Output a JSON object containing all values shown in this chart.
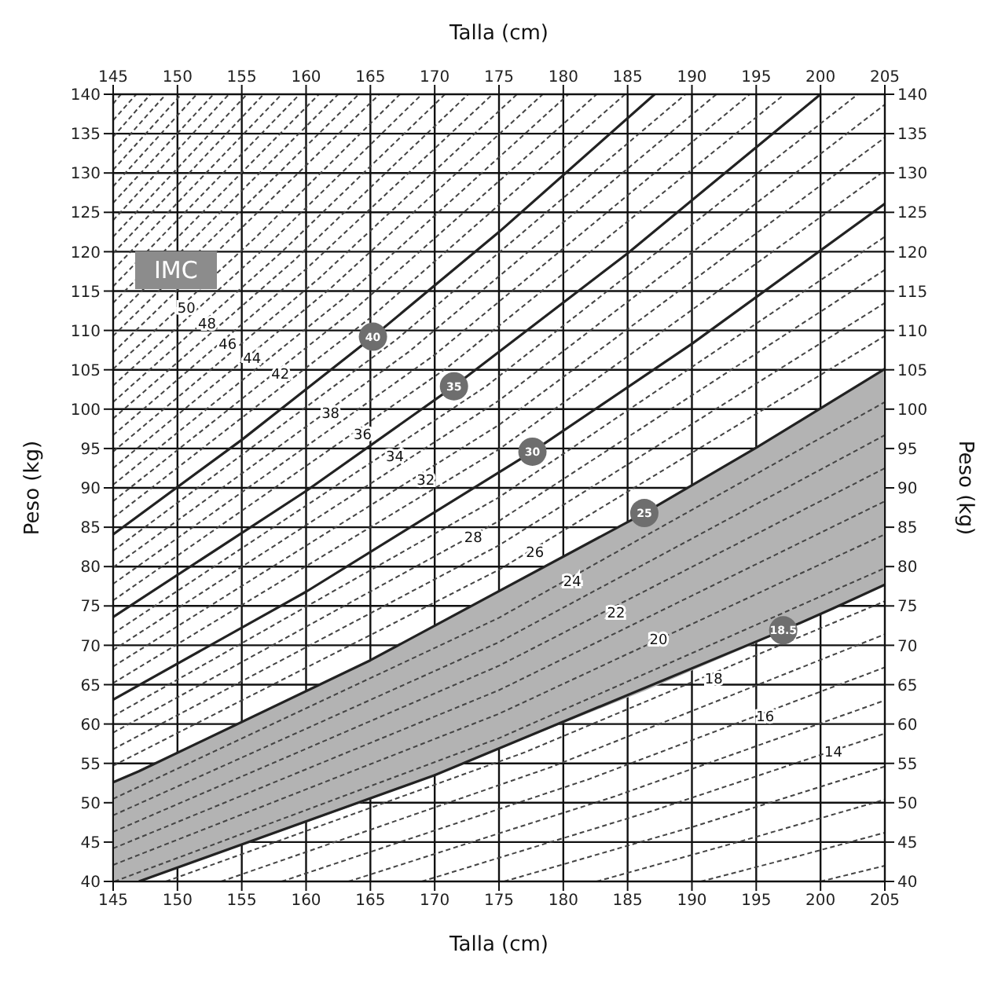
{
  "chart_data": {
    "type": "line",
    "xlabel": "Talla (cm)",
    "x2label": "Talla (cm)",
    "ylabel": "Peso (kg)",
    "y2label": "Peso (kg)",
    "xlim": [
      145,
      205
    ],
    "xticks": [
      145,
      150,
      155,
      160,
      165,
      170,
      175,
      180,
      185,
      190,
      195,
      200,
      205
    ],
    "x2lim": [
      145,
      205
    ],
    "x2ticks": [
      145,
      150,
      155,
      160,
      165,
      170,
      175,
      180,
      185,
      190,
      195,
      200,
      205
    ],
    "ylim": [
      40,
      140
    ],
    "yticks": [
      40,
      45,
      50,
      55,
      60,
      65,
      70,
      75,
      80,
      85,
      90,
      95,
      100,
      105,
      110,
      115,
      120,
      125,
      130,
      135,
      140
    ],
    "y2lim": [
      40,
      140
    ],
    "y2ticks": [
      40,
      45,
      50,
      55,
      60,
      65,
      70,
      75,
      80,
      85,
      90,
      95,
      100,
      105,
      110,
      115,
      120,
      125,
      130,
      135,
      140
    ],
    "grid": true,
    "marker": "none",
    "line_style": "dashed",
    "series": [
      {
        "color": "#444444",
        "x": [
          200,
          205
        ],
        "values": [
          40,
          42.0
        ]
      },
      {
        "color": "#444444",
        "x": [
          190.7,
          198,
          205
        ],
        "values": [
          40,
          43.1,
          46.2
        ]
      },
      {
        "color": "#444444",
        "x": [
          182.6,
          194,
          205
        ],
        "values": [
          40,
          45.2,
          50.4
        ]
      },
      {
        "color": "#444444",
        "x": [
          175.4,
          190,
          205
        ],
        "values": [
          40,
          46.9,
          54.6
        ]
      },
      {
        "color": "#444444",
        "x": [
          169.0,
          187,
          205
        ],
        "values": [
          40,
          49.0,
          58.8
        ]
      },
      {
        "color": "#444444",
        "x": [
          163.3,
          184,
          205
        ],
        "values": [
          40,
          50.8,
          63.0
        ]
      },
      {
        "color": "#444444",
        "x": [
          158.1,
          182,
          205
        ],
        "values": [
          40,
          53.0,
          67.2
        ]
      },
      {
        "color": "#444444",
        "x": [
          153.4,
          179,
          205
        ],
        "values": [
          40,
          54.5,
          71.4
        ]
      },
      {
        "color": "#444444",
        "x": [
          149.1,
          177,
          205
        ],
        "values": [
          40,
          56.4,
          75.6
        ]
      },
      {
        "name": "18.5",
        "color": "#222222",
        "line_style": "solid",
        "x": [
          147.0,
          170,
          197.1,
          201,
          205
        ],
        "values": [
          40.0,
          53.5,
          71.9,
          74.7,
          77.7
        ]
      },
      {
        "color": "#444444",
        "x": [
          145.1,
          175,
          205
        ],
        "values": [
          40,
          58.2,
          79.8
        ]
      },
      {
        "color": "#444444",
        "x": [
          145,
          175,
          205
        ],
        "values": [
          42.1,
          61.3,
          84.1
        ]
      },
      {
        "color": "#444444",
        "x": [
          145,
          175,
          205
        ],
        "values": [
          44.2,
          64.3,
          88.3
        ]
      },
      {
        "color": "#444444",
        "x": [
          145,
          175,
          205
        ],
        "values": [
          46.3,
          67.4,
          92.5
        ]
      },
      {
        "color": "#444444",
        "x": [
          145,
          175,
          205
        ],
        "values": [
          48.4,
          70.4,
          96.7
        ]
      },
      {
        "color": "#444444",
        "x": [
          145,
          175,
          205
        ],
        "values": [
          50.5,
          73.5,
          100.9
        ]
      },
      {
        "name": "25",
        "color": "#222222",
        "line_style": "solid",
        "x": [
          145,
          147.0,
          165,
          186.3,
          195,
          205
        ],
        "values": [
          52.6,
          54.0,
          68.1,
          86.8,
          95.1,
          105.1
        ],
        "lower": [
          40,
          40.0,
          50.4,
          64.2,
          70.3,
          77.7
        ],
        "upper": [
          52.6,
          54.0,
          68.1,
          86.8,
          95.1,
          105.1
        ]
      },
      {
        "color": "#444444",
        "x": [
          145,
          175,
          205
        ],
        "values": [
          54.7,
          79.6,
          109.3
        ]
      },
      {
        "color": "#444444",
        "x": [
          145,
          175,
          205
        ],
        "values": [
          56.8,
          82.7,
          113.5
        ]
      },
      {
        "color": "#444444",
        "x": [
          145,
          175,
          205
        ],
        "values": [
          58.9,
          85.8,
          117.7
        ]
      },
      {
        "color": "#444444",
        "x": [
          145,
          175,
          205
        ],
        "values": [
          61.0,
          88.8,
          121.9
        ]
      },
      {
        "name": "30",
        "color": "#222222",
        "line_style": "solid",
        "x": [
          145,
          160,
          177.6,
          190,
          205
        ],
        "values": [
          63.1,
          76.8,
          94.6,
          108.3,
          126.1
        ]
      },
      {
        "color": "#444444",
        "x": [
          145,
          175,
          205
        ],
        "values": [
          65.2,
          94.9,
          130.3
        ]
      },
      {
        "color": "#444444",
        "x": [
          145,
          175,
          205
        ],
        "values": [
          67.3,
          98.0,
          134.5
        ]
      },
      {
        "color": "#444444",
        "x": [
          145,
          175,
          205
        ],
        "values": [
          69.4,
          101.1,
          138.7
        ]
      },
      {
        "color": "#444444",
        "x": [
          145,
          174,
          202.9
        ],
        "values": [
          71.5,
          102.9,
          140
        ]
      },
      {
        "name": "35",
        "color": "#222222",
        "line_style": "solid",
        "x": [
          145,
          160,
          171.5,
          185,
          200
        ],
        "values": [
          73.6,
          89.6,
          102.9,
          119.8,
          140
        ]
      },
      {
        "color": "#444444",
        "x": [
          145,
          171,
          197.2
        ],
        "values": [
          75.7,
          105.3,
          140
        ]
      },
      {
        "color": "#444444",
        "x": [
          145,
          170,
          194.5
        ],
        "values": [
          77.8,
          106.9,
          140
        ]
      },
      {
        "color": "#444444",
        "x": [
          145,
          168,
          191.9
        ],
        "values": [
          79.9,
          107.3,
          140
        ]
      },
      {
        "color": "#444444",
        "x": [
          145,
          167,
          189.5
        ],
        "values": [
          82.0,
          108.8,
          140
        ]
      },
      {
        "name": "40",
        "color": "#222222",
        "line_style": "solid",
        "x": [
          145,
          155,
          165.2,
          175,
          187.1
        ],
        "values": [
          84.1,
          96.1,
          109.2,
          122.5,
          140
        ]
      },
      {
        "color": "#444444",
        "x": [
          145,
          165,
          184.8
        ],
        "values": [
          86.2,
          111.6,
          140
        ]
      },
      {
        "color": "#444444",
        "x": [
          145,
          164,
          182.6
        ],
        "values": [
          88.3,
          113.0,
          140
        ]
      },
      {
        "color": "#444444",
        "x": [
          145,
          163,
          180.4
        ],
        "values": [
          90.4,
          114.2,
          140
        ]
      },
      {
        "color": "#444444",
        "x": [
          145,
          162,
          178.4
        ],
        "values": [
          92.5,
          115.5,
          140
        ]
      },
      {
        "color": "#444444",
        "x": [
          145,
          161,
          176.4
        ],
        "values": [
          94.6,
          116.6,
          140
        ]
      },
      {
        "color": "#444444",
        "x": [
          145,
          160,
          174.5
        ],
        "values": [
          96.7,
          117.8,
          140
        ]
      },
      {
        "color": "#444444",
        "x": [
          145,
          159,
          172.6
        ],
        "values": [
          98.8,
          118.8,
          140
        ]
      },
      {
        "color": "#444444",
        "x": [
          145,
          158,
          170.8
        ],
        "values": [
          100.9,
          119.8,
          140
        ]
      },
      {
        "color": "#444444",
        "x": [
          145,
          157,
          169.0
        ],
        "values": [
          103.0,
          120.8,
          140
        ]
      },
      {
        "color": "#444444",
        "x": [
          145,
          156,
          167.3
        ],
        "values": [
          105.1,
          121.7,
          140
        ]
      },
      {
        "color": "#444444",
        "x": [
          145,
          165.7
        ],
        "values": [
          107.2,
          140
        ]
      },
      {
        "color": "#444444",
        "x": [
          145,
          164.1
        ],
        "values": [
          109.3,
          140
        ]
      },
      {
        "color": "#444444",
        "x": [
          145,
          162.5
        ],
        "values": [
          111.4,
          140
        ]
      },
      {
        "color": "#444444",
        "x": [
          145,
          161.0
        ],
        "values": [
          113.5,
          140
        ]
      },
      {
        "color": "#444444",
        "x": [
          145,
          159.5
        ],
        "values": [
          115.6,
          140
        ]
      },
      {
        "color": "#444444",
        "x": [
          145,
          158.1
        ],
        "values": [
          117.7,
          140
        ]
      },
      {
        "color": "#444444",
        "x": [
          145,
          156.7
        ],
        "values": [
          119.8,
          140
        ]
      },
      {
        "color": "#444444",
        "x": [
          145,
          155.4
        ],
        "values": [
          121.9,
          140
        ]
      },
      {
        "color": "#444444",
        "x": [
          145,
          154.0
        ],
        "values": [
          124.0,
          140
        ]
      },
      {
        "color": "#444444",
        "x": [
          145,
          152.8
        ],
        "values": [
          126.2,
          140
        ]
      },
      {
        "color": "#444444",
        "x": [
          145,
          151.5
        ],
        "values": [
          128.3,
          140
        ]
      },
      {
        "color": "#444444",
        "x": [
          145,
          150.3
        ],
        "values": [
          130.4,
          140
        ]
      },
      {
        "color": "#444444",
        "x": [
          145,
          149.1
        ],
        "values": [
          132.5,
          140
        ]
      },
      {
        "color": "#444444",
        "x": [
          145,
          147.9
        ],
        "values": [
          134.6,
          140
        ]
      },
      {
        "color": "#444444",
        "x": [
          145,
          146.8
        ],
        "values": [
          136.7,
          140
        ]
      },
      {
        "color": "#444444",
        "x": [
          145,
          145.6
        ],
        "values": [
          138.8,
          140
        ]
      }
    ],
    "annotations": [
      "IMC",
      {
        "text": "50",
        "x": 150.7,
        "y": 113.0
      },
      {
        "text": "48",
        "x": 152.3,
        "y": 111.0
      },
      {
        "text": "46",
        "x": 153.9,
        "y": 108.4
      },
      {
        "text": "44",
        "x": 155.8,
        "y": 106.6
      },
      {
        "text": "42",
        "x": 158.0,
        "y": 104.6
      },
      {
        "text": "38",
        "x": 161.9,
        "y": 99.6
      },
      {
        "text": "36",
        "x": 164.4,
        "y": 96.9
      },
      {
        "text": "34",
        "x": 166.9,
        "y": 94.1
      },
      {
        "text": "32",
        "x": 169.3,
        "y": 91.1
      },
      {
        "text": "28",
        "x": 173.0,
        "y": 83.8
      },
      {
        "text": "26",
        "x": 177.8,
        "y": 81.9
      },
      {
        "text": "24",
        "x": 180.7,
        "y": 78.2
      },
      {
        "text": "22",
        "x": 184.1,
        "y": 74.2
      },
      {
        "text": "20",
        "x": 187.4,
        "y": 70.8
      },
      {
        "text": "18",
        "x": 191.7,
        "y": 65.8
      },
      {
        "text": "16",
        "x": 195.7,
        "y": 61.1
      },
      {
        "text": "14",
        "x": 201.0,
        "y": 56.6
      }
    ]
  }
}
